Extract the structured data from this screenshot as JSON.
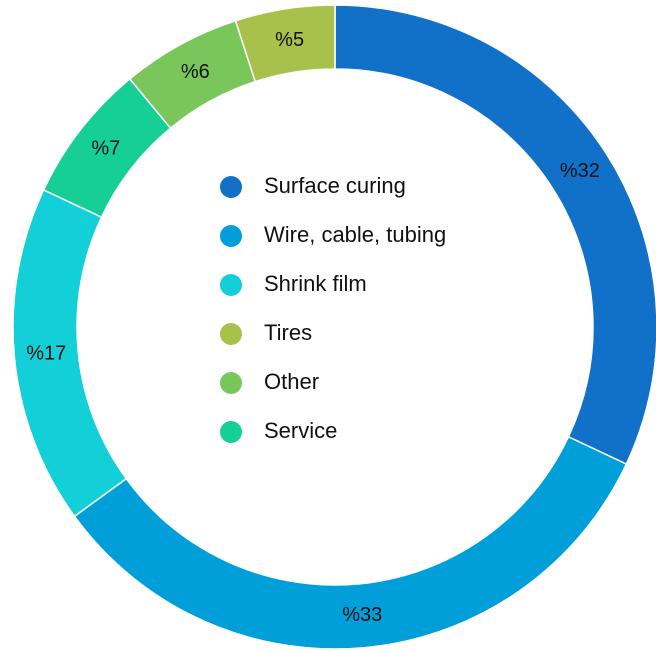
{
  "chart_data": {
    "type": "pie",
    "categories": [
      "Surface curing",
      "Wire, cable, tubing",
      "Shrink film",
      "Service",
      "Other",
      "Tires"
    ],
    "values": [
      32,
      33,
      17,
      7,
      6,
      5
    ],
    "value_labels": [
      "%32",
      "%33",
      "%17",
      "%7",
      "%6",
      "%5"
    ],
    "colors": [
      "#1170c8",
      "#009fd9",
      "#12cfd8",
      "#16cf96",
      "#79c75a",
      "#a8c14a"
    ],
    "donut": true,
    "legend_order": [
      0,
      1,
      2,
      5,
      4,
      3
    ]
  }
}
